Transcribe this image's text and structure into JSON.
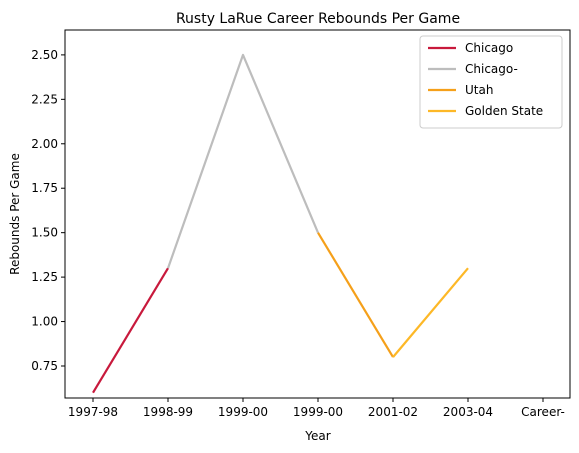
{
  "chart_data": {
    "type": "line",
    "title": "Rusty LaRue Career Rebounds Per Game",
    "xlabel": "Year",
    "ylabel": "Rebounds Per Game",
    "categories": [
      "1997-98",
      "1998-99",
      "1999-00",
      "1999-00",
      "2001-02",
      "2003-04",
      "Career-"
    ],
    "ylim": [
      0.57,
      2.64
    ],
    "yticks": [
      "0.75",
      "1.00",
      "1.25",
      "1.50",
      "1.75",
      "2.00",
      "2.25",
      "2.50"
    ],
    "ytick_values": [
      0.75,
      1.0,
      1.25,
      1.5,
      1.75,
      2.0,
      2.25,
      2.5
    ],
    "grid": false,
    "legend_position": "top-right",
    "series": [
      {
        "name": "Chicago",
        "color": "#c8193c",
        "points": [
          [
            0,
            0.6
          ],
          [
            1,
            1.3
          ]
        ]
      },
      {
        "name": "Chicago-",
        "color": "#bdbdbd",
        "points": [
          [
            1,
            1.3
          ],
          [
            2,
            2.5
          ],
          [
            3,
            1.5
          ]
        ]
      },
      {
        "name": "Utah",
        "color": "#f5a01a",
        "points": [
          [
            3,
            1.5
          ],
          [
            4,
            0.8
          ]
        ]
      },
      {
        "name": "Golden State",
        "color": "#fdb827",
        "points": [
          [
            4,
            0.8
          ],
          [
            5,
            1.3
          ]
        ]
      }
    ]
  }
}
